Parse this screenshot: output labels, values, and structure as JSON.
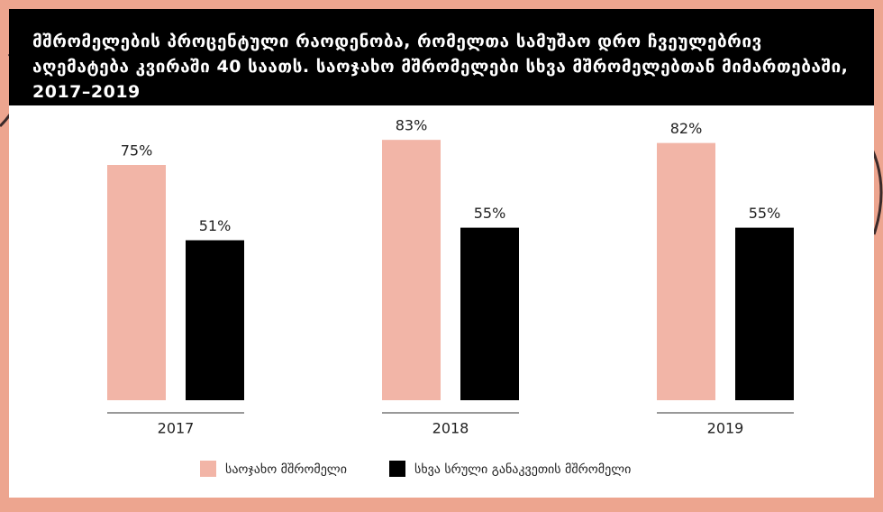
{
  "chart_data": {
    "type": "bar",
    "title": "მშრომელების პროცენტული რაოდენობა, რომელთა სამუშაო დრო ჩვეულებრივ აღემატება კვირაში 40 საათს. საოჯახო მშრომელები სხვა მშრომელებთან მიმართებაში, 2017–2019",
    "categories": [
      "2017",
      "2018",
      "2019"
    ],
    "series": [
      {
        "name": "საოჯახო მშრომელი",
        "color": "#f2b5a7",
        "values": [
          75,
          83,
          82
        ],
        "value_labels": [
          "75%",
          "83%",
          "82%"
        ]
      },
      {
        "name": "სხვა სრული განაკვეთის მშრომელი",
        "color": "#000000",
        "values": [
          51,
          55,
          55
        ],
        "value_labels": [
          "51%",
          "55%",
          "55%"
        ]
      }
    ],
    "ylim": [
      0,
      100
    ],
    "legend": "bottom"
  }
}
